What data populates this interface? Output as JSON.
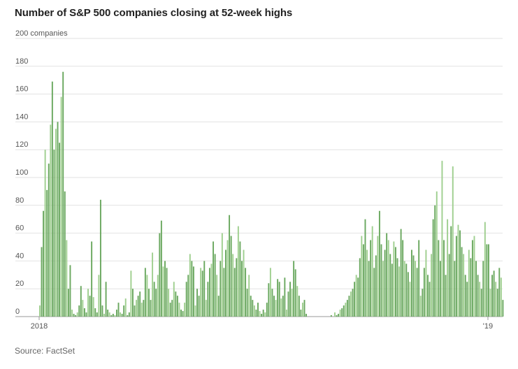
{
  "title": "Number of S&P 500 companies closing at 52-week highs",
  "source": "Source: FactSet",
  "chart_data": {
    "type": "bar",
    "unit_label": "200 companies",
    "ylim": [
      0,
      200
    ],
    "yticks": [
      0,
      20,
      40,
      60,
      80,
      100,
      120,
      140,
      160,
      180
    ],
    "xticks": [
      {
        "label": "2018",
        "index": 0
      },
      {
        "label": "'19",
        "index": 251
      }
    ],
    "grid": true,
    "bar_colors": [
      "#6aa85f",
      "#9fcf8f"
    ],
    "values": [
      8,
      50,
      76,
      120,
      91,
      110,
      138,
      169,
      120,
      135,
      140,
      125,
      158,
      176,
      90,
      55,
      20,
      37,
      5,
      2,
      1,
      3,
      8,
      22,
      12,
      6,
      3,
      20,
      15,
      54,
      14,
      6,
      3,
      30,
      84,
      8,
      2,
      25,
      5,
      3,
      1,
      2,
      1,
      5,
      10,
      3,
      2,
      8,
      13,
      1,
      3,
      33,
      20,
      8,
      12,
      15,
      18,
      10,
      12,
      35,
      30,
      20,
      12,
      46,
      25,
      20,
      30,
      60,
      69,
      36,
      40,
      35,
      20,
      10,
      12,
      25,
      18,
      15,
      10,
      5,
      4,
      10,
      25,
      30,
      45,
      40,
      36,
      8,
      20,
      15,
      35,
      33,
      40,
      12,
      25,
      35,
      38,
      54,
      45,
      30,
      15,
      40,
      60,
      35,
      48,
      55,
      73,
      58,
      45,
      35,
      42,
      65,
      54,
      40,
      48,
      35,
      20,
      30,
      15,
      12,
      8,
      5,
      10,
      4,
      2,
      5,
      3,
      10,
      24,
      35,
      20,
      15,
      12,
      27,
      25,
      13,
      15,
      28,
      5,
      18,
      25,
      20,
      40,
      34,
      22,
      15,
      5,
      10,
      12,
      2,
      0,
      0,
      0,
      0,
      0,
      0,
      0,
      0,
      0,
      0,
      0,
      0,
      0,
      1,
      0,
      3,
      1,
      2,
      5,
      6,
      8,
      10,
      12,
      15,
      18,
      20,
      25,
      30,
      28,
      42,
      58,
      52,
      70,
      48,
      40,
      55,
      65,
      35,
      44,
      58,
      76,
      52,
      40,
      48,
      60,
      55,
      45,
      38,
      54,
      50,
      42,
      36,
      63,
      55,
      40,
      38,
      32,
      25,
      48,
      44,
      40,
      35,
      55,
      15,
      20,
      35,
      48,
      30,
      25,
      45,
      70,
      80,
      90,
      55,
      40,
      112,
      55,
      30,
      70,
      45,
      65,
      108,
      40,
      58,
      66,
      62,
      50,
      45,
      30,
      25,
      48,
      42,
      55,
      58,
      40,
      30,
      25,
      20,
      40,
      68,
      52,
      52,
      20,
      30,
      33,
      25,
      20,
      35,
      28,
      12
    ]
  }
}
